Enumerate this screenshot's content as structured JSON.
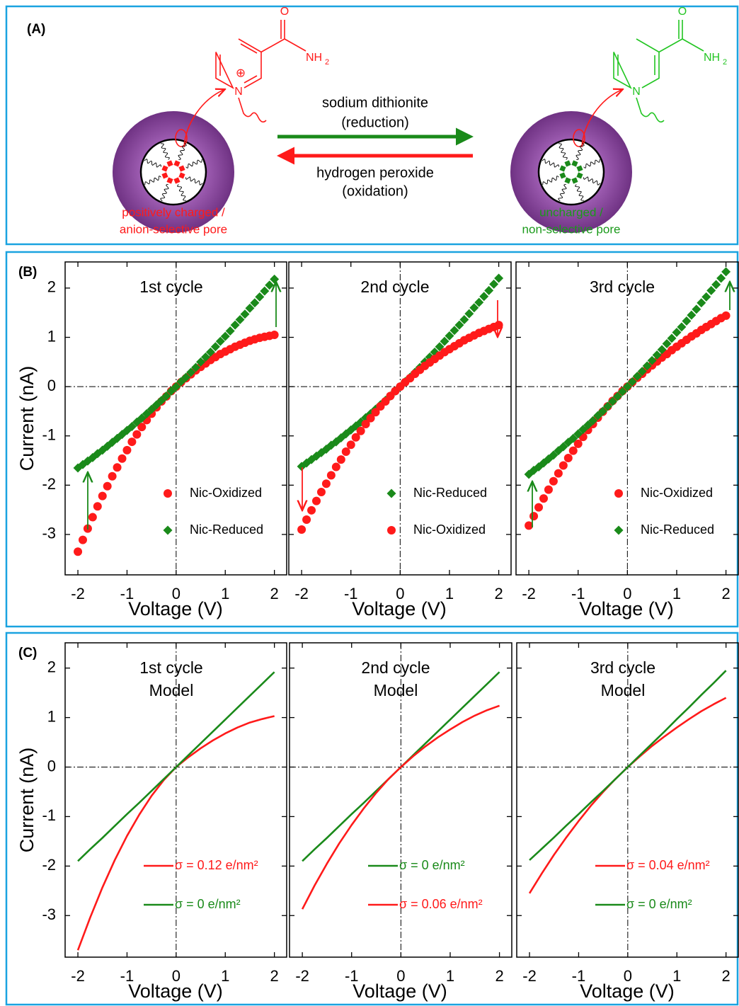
{
  "panel_labels": [
    "(A)",
    "(B)",
    "(C)"
  ],
  "scheme": {
    "reagent_forward": [
      "sodium dithionite",
      "(reduction)"
    ],
    "reagent_backward": [
      "hydrogen peroxide",
      "(oxidation)"
    ],
    "left_label": [
      "positively charged /",
      "anion-selective pore"
    ],
    "right_label": [
      "uncharged  /",
      "non-selective pore"
    ],
    "oxygen": "O",
    "nitrogen": "N",
    "amide": "NH",
    "amide_subscript": "2",
    "charge": "⊕"
  },
  "chart_data": [
    {
      "type": "scatter",
      "title": [
        "1st cycle"
      ],
      "xlabel": "Voltage (V)",
      "ylabel": "Current (nA)",
      "ytick_labels": true,
      "xlim": [
        -2.26,
        2.25
      ],
      "ylim": [
        -3.82,
        2.53
      ],
      "xticks": [
        -2,
        -1,
        0,
        1,
        2
      ],
      "yticks": [
        -3,
        -2,
        -1,
        0,
        1,
        2
      ],
      "x": [
        -2,
        -1.9,
        -1.8,
        -1.7,
        -1.6,
        -1.5,
        -1.4,
        -1.3,
        -1.2,
        -1.1,
        -1,
        -0.9,
        -0.8,
        -0.7,
        -0.6,
        -0.5,
        -0.4,
        -0.3,
        -0.2,
        -0.1,
        0,
        0.1,
        0.2,
        0.3,
        0.4,
        0.5,
        0.6,
        0.7,
        0.8,
        0.9,
        1,
        1.1,
        1.2,
        1.3,
        1.4,
        1.5,
        1.6,
        1.7,
        1.8,
        1.9,
        2
      ],
      "series": [
        {
          "name": "Nic-Oxidized",
          "color": "#ff1a1a",
          "marker": "circle",
          "values": [
            -3.35,
            -3.11,
            -2.88,
            -2.65,
            -2.43,
            -2.22,
            -2.02,
            -1.82,
            -1.64,
            -1.46,
            -1.29,
            -1.12,
            -0.97,
            -0.82,
            -0.68,
            -0.55,
            -0.42,
            -0.3,
            -0.2,
            -0.09,
            0,
            0.09,
            0.17,
            0.25,
            0.33,
            0.4,
            0.47,
            0.54,
            0.6,
            0.66,
            0.71,
            0.76,
            0.81,
            0.85,
            0.89,
            0.93,
            0.96,
            0.99,
            1.01,
            1.03,
            1.05
          ]
        },
        {
          "name": "Nic-Reduced",
          "color": "#1a8a1a",
          "marker": "diamond",
          "values": [
            -1.65,
            -1.58,
            -1.51,
            -1.44,
            -1.36,
            -1.29,
            -1.21,
            -1.13,
            -1.05,
            -0.97,
            -0.89,
            -0.81,
            -0.72,
            -0.64,
            -0.55,
            -0.46,
            -0.37,
            -0.28,
            -0.19,
            -0.09,
            0,
            0.1,
            0.19,
            0.29,
            0.39,
            0.5,
            0.6,
            0.7,
            0.81,
            0.92,
            1.02,
            1.13,
            1.25,
            1.36,
            1.47,
            1.59,
            1.7,
            1.82,
            1.94,
            2.06,
            2.18
          ]
        }
      ]
    },
    {
      "type": "scatter",
      "title": [
        "2nd cycle"
      ],
      "xlabel": "Voltage (V)",
      "ytick_labels": false,
      "xlim": [
        -2.26,
        2.25
      ],
      "ylim": [
        -3.82,
        2.53
      ],
      "xticks": [
        -2,
        -1,
        0,
        1,
        2
      ],
      "yticks": [
        -3,
        -2,
        -1,
        0,
        1,
        2
      ],
      "x": [
        -2,
        -1.9,
        -1.8,
        -1.7,
        -1.6,
        -1.5,
        -1.4,
        -1.3,
        -1.2,
        -1.1,
        -1,
        -0.9,
        -0.8,
        -0.7,
        -0.6,
        -0.5,
        -0.4,
        -0.3,
        -0.2,
        -0.1,
        0,
        0.1,
        0.2,
        0.3,
        0.4,
        0.5,
        0.6,
        0.7,
        0.8,
        0.9,
        1,
        1.1,
        1.2,
        1.3,
        1.4,
        1.5,
        1.6,
        1.7,
        1.8,
        1.9,
        2
      ],
      "series": [
        {
          "name": "Nic-Reduced",
          "color": "#1a8a1a",
          "marker": "diamond",
          "values": [
            -1.62,
            -1.55,
            -1.48,
            -1.41,
            -1.34,
            -1.27,
            -1.19,
            -1.12,
            -1.04,
            -0.96,
            -0.88,
            -0.8,
            -0.72,
            -0.63,
            -0.55,
            -0.46,
            -0.37,
            -0.28,
            -0.19,
            -0.09,
            0,
            0.1,
            0.19,
            0.29,
            0.39,
            0.5,
            0.6,
            0.7,
            0.81,
            0.92,
            1.03,
            1.14,
            1.25,
            1.36,
            1.48,
            1.6,
            1.71,
            1.83,
            1.95,
            2.08,
            2.2
          ]
        },
        {
          "name": "Nic-Oxidized",
          "color": "#ff1a1a",
          "marker": "circle",
          "values": [
            -2.9,
            -2.7,
            -2.51,
            -2.32,
            -2.14,
            -1.97,
            -1.8,
            -1.63,
            -1.48,
            -1.32,
            -1.18,
            -1.03,
            -0.9,
            -0.76,
            -0.64,
            -0.52,
            -0.4,
            -0.3,
            -0.19,
            -0.09,
            0,
            0.09,
            0.17,
            0.26,
            0.34,
            0.42,
            0.49,
            0.56,
            0.63,
            0.7,
            0.76,
            0.82,
            0.88,
            0.94,
            0.99,
            1.04,
            1.09,
            1.13,
            1.17,
            1.21,
            1.25
          ]
        }
      ]
    },
    {
      "type": "scatter",
      "title": [
        "3rd cycle"
      ],
      "xlabel": "Voltage (V)",
      "ytick_labels": false,
      "xlim": [
        -2.26,
        2.25
      ],
      "ylim": [
        -3.82,
        2.53
      ],
      "xticks": [
        -2,
        -1,
        0,
        1,
        2
      ],
      "yticks": [
        -3,
        -2,
        -1,
        0,
        1,
        2
      ],
      "x": [
        -2,
        -1.9,
        -1.8,
        -1.7,
        -1.6,
        -1.5,
        -1.4,
        -1.3,
        -1.2,
        -1.1,
        -1,
        -0.9,
        -0.8,
        -0.7,
        -0.6,
        -0.5,
        -0.4,
        -0.3,
        -0.2,
        -0.1,
        0,
        0.1,
        0.2,
        0.3,
        0.4,
        0.5,
        0.6,
        0.7,
        0.8,
        0.9,
        1,
        1.1,
        1.2,
        1.3,
        1.4,
        1.5,
        1.6,
        1.7,
        1.8,
        1.9,
        2
      ],
      "series": [
        {
          "name": "Nic-Oxidized",
          "color": "#ff1a1a",
          "marker": "circle",
          "values": [
            -2.82,
            -2.63,
            -2.45,
            -2.27,
            -2.09,
            -1.92,
            -1.76,
            -1.6,
            -1.45,
            -1.3,
            -1.16,
            -1.02,
            -0.88,
            -0.76,
            -0.63,
            -0.51,
            -0.4,
            -0.29,
            -0.19,
            -0.09,
            0,
            0.09,
            0.18,
            0.26,
            0.35,
            0.43,
            0.51,
            0.59,
            0.66,
            0.74,
            0.81,
            0.88,
            0.95,
            1.02,
            1.08,
            1.15,
            1.21,
            1.27,
            1.33,
            1.39,
            1.44
          ]
        },
        {
          "name": "Nic-Reduced",
          "color": "#1a8a1a",
          "marker": "diamond",
          "values": [
            -1.78,
            -1.7,
            -1.63,
            -1.55,
            -1.47,
            -1.39,
            -1.3,
            -1.22,
            -1.13,
            -1.05,
            -0.96,
            -0.87,
            -0.78,
            -0.69,
            -0.59,
            -0.5,
            -0.4,
            -0.3,
            -0.2,
            -0.1,
            0,
            0.1,
            0.21,
            0.31,
            0.42,
            0.53,
            0.64,
            0.75,
            0.87,
            0.98,
            1.1,
            1.21,
            1.33,
            1.45,
            1.57,
            1.7,
            1.82,
            1.95,
            2.07,
            2.2,
            2.33
          ]
        }
      ]
    },
    {
      "type": "line",
      "title": [
        "1st cycle",
        "Model"
      ],
      "xlabel": "Voltage (V)",
      "ylabel": "Current (nA)",
      "ytick_labels": true,
      "xlim": [
        -2.26,
        2.25
      ],
      "ylim": [
        -3.84,
        2.51
      ],
      "xticks": [
        -2,
        -1,
        0,
        1,
        2
      ],
      "yticks": [
        -3,
        -2,
        -1,
        0,
        1,
        2
      ],
      "x": [
        -2,
        -1.75,
        -1.5,
        -1.25,
        -1,
        -0.75,
        -0.5,
        -0.25,
        0,
        0.25,
        0.5,
        0.75,
        1,
        1.25,
        1.5,
        1.75,
        2
      ],
      "series": [
        {
          "name": "σ = 0.12 e/nm²",
          "color": "#ff1a1a",
          "values": [
            -3.7,
            -3.04,
            -2.43,
            -1.88,
            -1.39,
            -0.96,
            -0.58,
            -0.26,
            0,
            0.2,
            0.38,
            0.54,
            0.68,
            0.8,
            0.9,
            0.97,
            1.03
          ]
        },
        {
          "name": "σ = 0 e/nm²",
          "color": "#1a8a1a",
          "values": [
            -1.9,
            -1.66,
            -1.43,
            -1.19,
            -0.95,
            -0.72,
            -0.48,
            -0.24,
            0,
            0.24,
            0.48,
            0.72,
            0.96,
            1.2,
            1.44,
            1.68,
            1.92
          ]
        }
      ]
    },
    {
      "type": "line",
      "title": [
        "2nd cycle",
        "Model"
      ],
      "xlabel": "Voltage (V)",
      "ytick_labels": false,
      "xlim": [
        -2.26,
        2.25
      ],
      "ylim": [
        -3.84,
        2.51
      ],
      "xticks": [
        -2,
        -1,
        0,
        1,
        2
      ],
      "yticks": [
        -3,
        -2,
        -1,
        0,
        1,
        2
      ],
      "x": [
        -2,
        -1.75,
        -1.5,
        -1.25,
        -1,
        -0.75,
        -0.5,
        -0.25,
        0,
        0.25,
        0.5,
        0.75,
        1,
        1.25,
        1.5,
        1.75,
        2
      ],
      "series": [
        {
          "name": "σ = 0 e/nm²",
          "color": "#1a8a1a",
          "values": [
            -1.9,
            -1.66,
            -1.43,
            -1.19,
            -0.95,
            -0.72,
            -0.48,
            -0.24,
            0,
            0.24,
            0.48,
            0.72,
            0.96,
            1.2,
            1.44,
            1.68,
            1.92
          ]
        },
        {
          "name": "σ = 0.06 e/nm²",
          "color": "#ff1a1a",
          "values": [
            -2.87,
            -2.39,
            -1.95,
            -1.54,
            -1.17,
            -0.83,
            -0.52,
            -0.24,
            0,
            0.22,
            0.42,
            0.6,
            0.76,
            0.91,
            1.04,
            1.15,
            1.24
          ]
        }
      ]
    },
    {
      "type": "line",
      "title": [
        "3rd cycle",
        "Model"
      ],
      "xlabel": "Voltage (V)",
      "ytick_labels": false,
      "xlim": [
        -2.26,
        2.25
      ],
      "ylim": [
        -3.84,
        2.51
      ],
      "xticks": [
        -2,
        -1,
        0,
        1,
        2
      ],
      "yticks": [
        -3,
        -2,
        -1,
        0,
        1,
        2
      ],
      "x": [
        -2,
        -1.75,
        -1.5,
        -1.25,
        -1,
        -0.75,
        -0.5,
        -0.25,
        0,
        0.25,
        0.5,
        0.75,
        1,
        1.25,
        1.5,
        1.75,
        2
      ],
      "series": [
        {
          "name": "σ = 0.04 e/nm²",
          "color": "#ff1a1a",
          "values": [
            -2.55,
            -2.15,
            -1.77,
            -1.42,
            -1.09,
            -0.78,
            -0.5,
            -0.24,
            0,
            0.22,
            0.43,
            0.62,
            0.8,
            0.97,
            1.13,
            1.27,
            1.4
          ]
        },
        {
          "name": "σ = 0 e/nm²",
          "color": "#1a8a1a",
          "values": [
            -1.88,
            -1.65,
            -1.42,
            -1.18,
            -0.95,
            -0.71,
            -0.48,
            -0.24,
            0,
            0.24,
            0.48,
            0.72,
            0.97,
            1.21,
            1.46,
            1.7,
            1.95
          ]
        }
      ]
    }
  ]
}
